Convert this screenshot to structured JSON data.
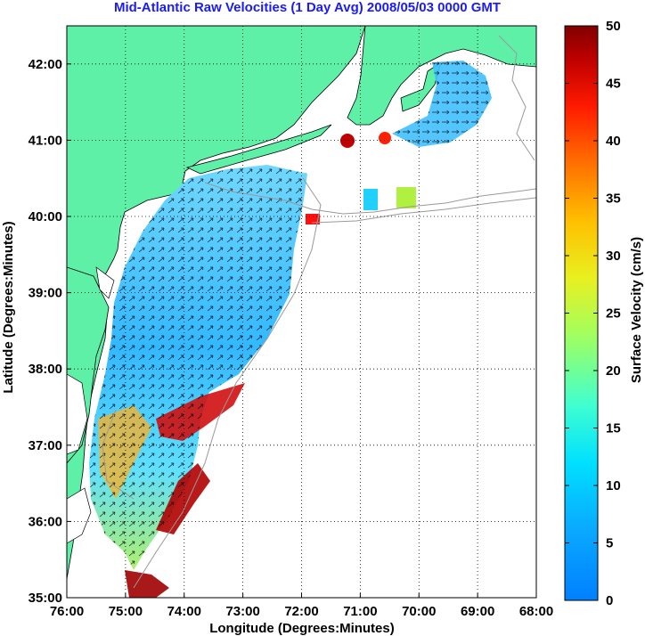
{
  "title": "Mid-Atlantic Raw Velocities (1 Day Avg) 2008/05/03 0000 GMT",
  "map": {
    "xlabel": "Longitude (Degrees:Minutes)",
    "ylabel": "Latitude (Degrees:Minutes)",
    "lon_ticks": [
      "76:00",
      "75:00",
      "74:00",
      "73:00",
      "72:00",
      "71:00",
      "70:00",
      "69:00",
      "68:00"
    ],
    "lat_ticks": [
      "35:00",
      "36:00",
      "37:00",
      "38:00",
      "39:00",
      "40:00",
      "41:00",
      "42:00"
    ],
    "lon_range": [
      -76,
      -68
    ],
    "lat_range": [
      35,
      42.5
    ],
    "grid": "dotted",
    "land_color": "#5ff0a8",
    "ocean_color": "#ffffff",
    "coastline_color": "#000000",
    "bathymetry_color": "#999999"
  },
  "colorbar": {
    "label": "Surface Velocity (cm/s)",
    "ticks": [
      "0",
      "5",
      "10",
      "15",
      "20",
      "25",
      "30",
      "35",
      "40",
      "45",
      "50"
    ],
    "range": [
      0,
      50
    ],
    "colormap": "jet"
  }
}
